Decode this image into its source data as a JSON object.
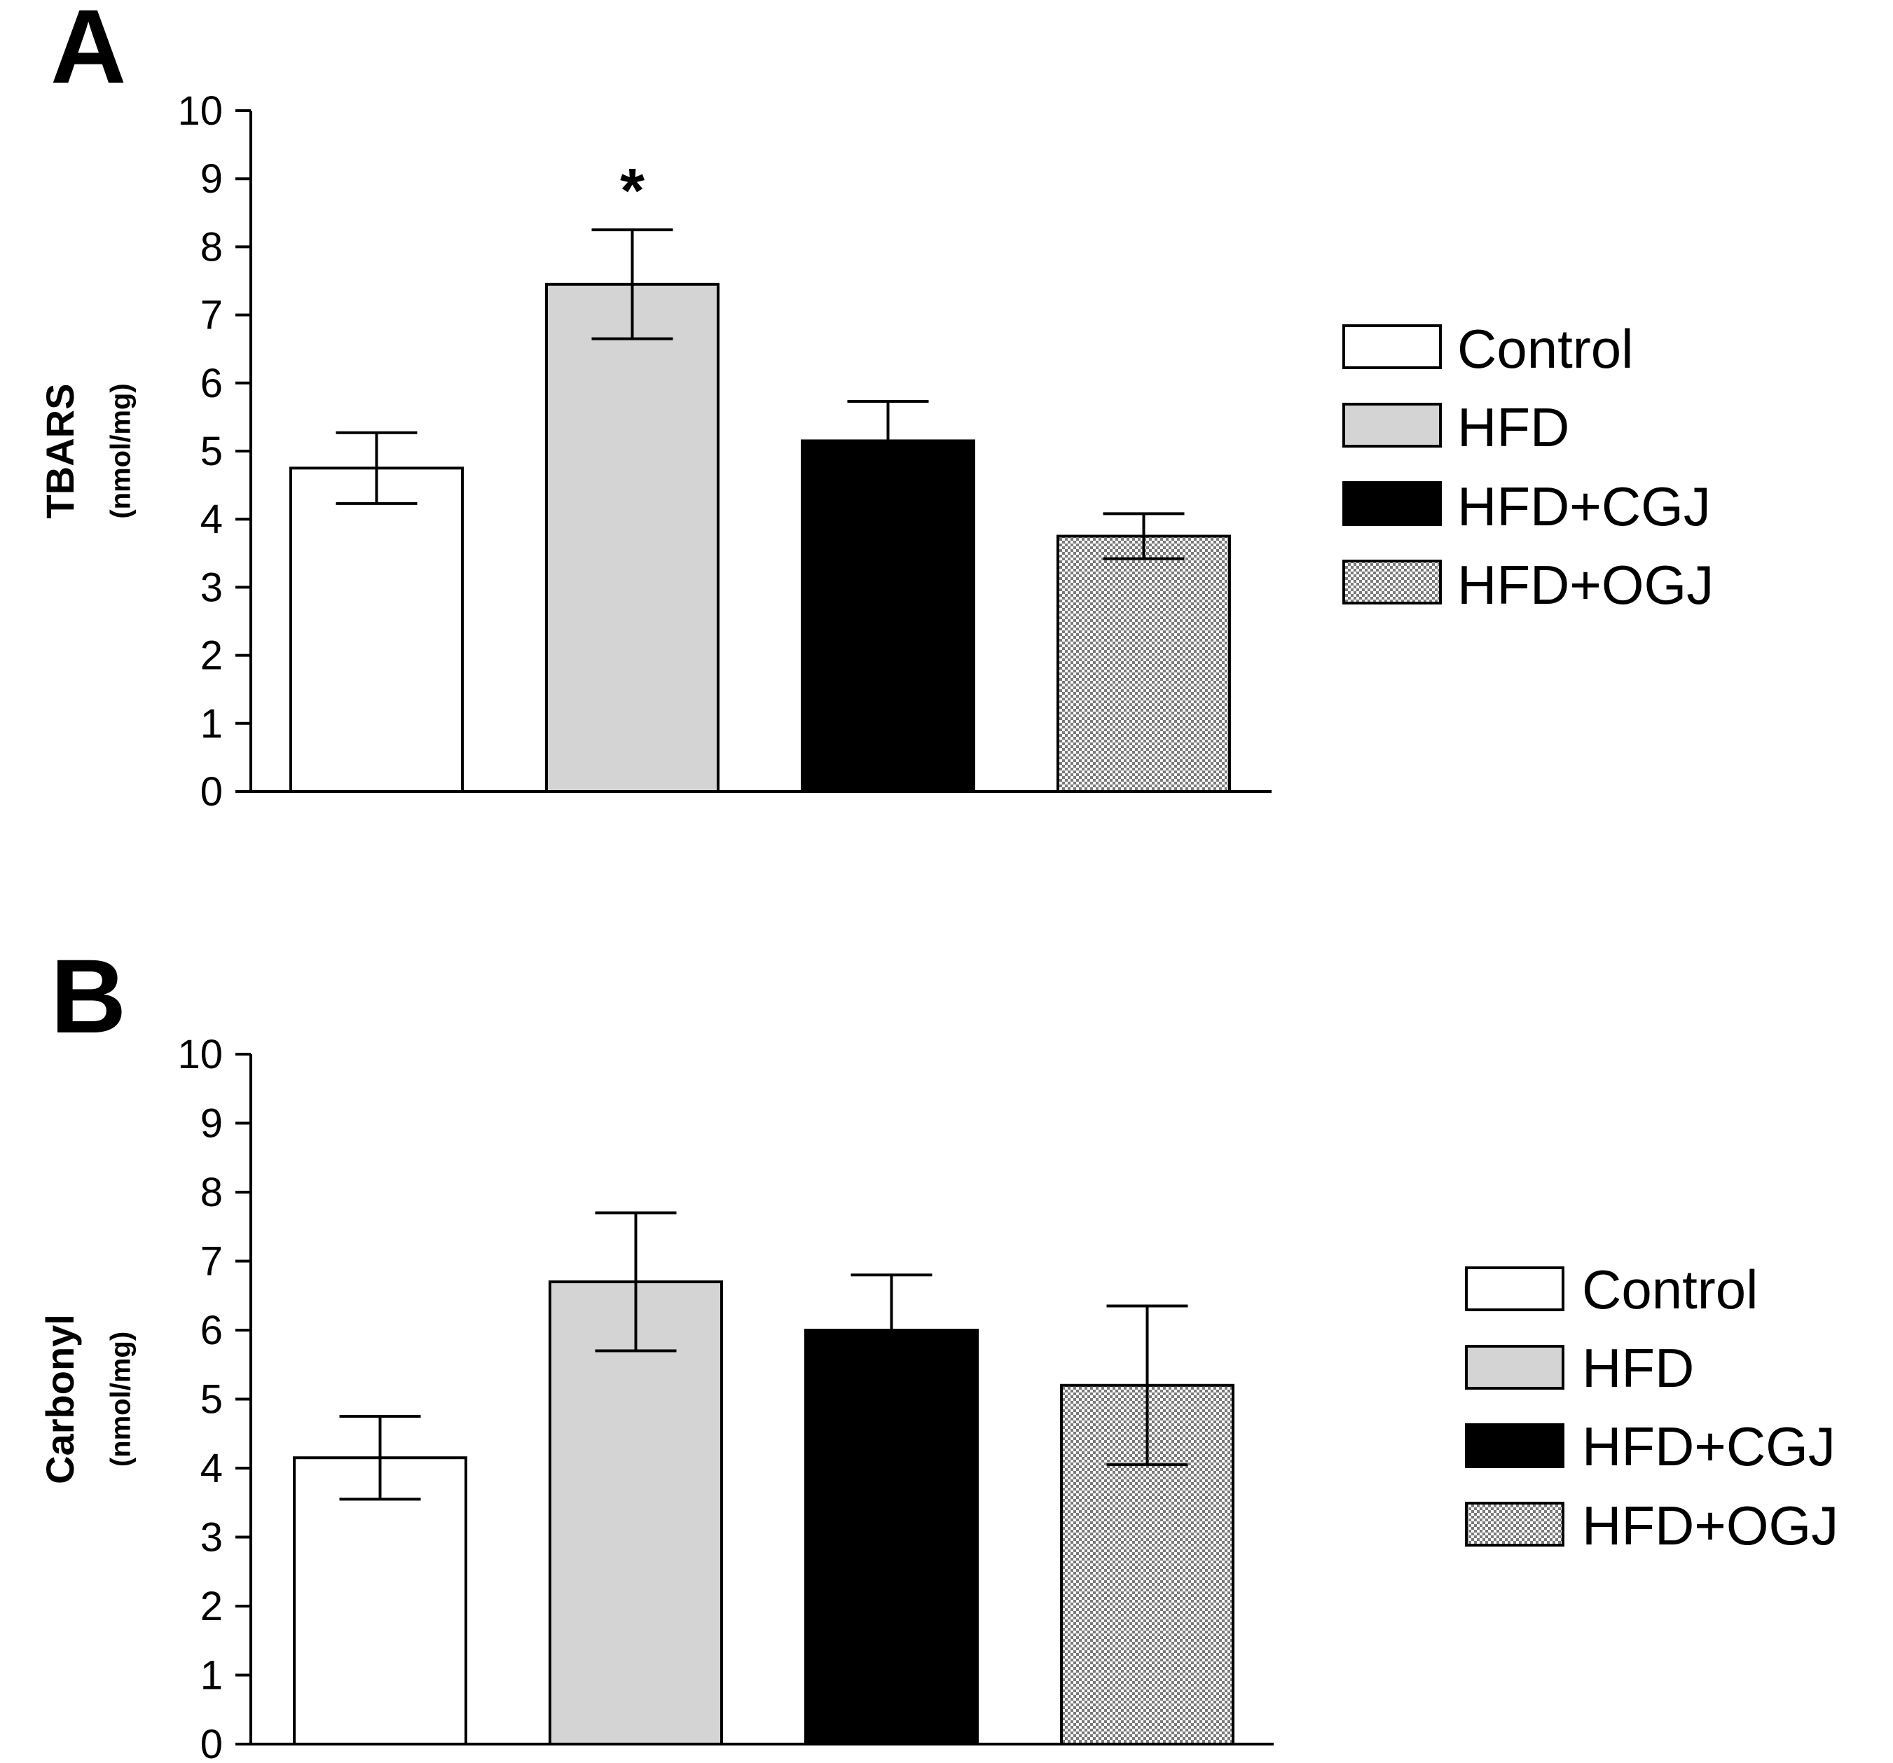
{
  "chart_data": [
    {
      "panel": "A",
      "type": "bar",
      "title": "",
      "xlabel": "",
      "ylabel": "TBARS",
      "ylabel_unit": "(nmol/mg)",
      "ylim": [
        0,
        10
      ],
      "yticks": [
        "0",
        "1",
        "2",
        "3",
        "4",
        "5",
        "6",
        "7",
        "8",
        "9",
        "10"
      ],
      "categories": [
        "Control",
        "HFD",
        "HFD+CGJ",
        "HFD+OGJ"
      ],
      "values": [
        4.75,
        7.45,
        5.15,
        3.75
      ],
      "errors": [
        0.52,
        0.8,
        0.58,
        0.33
      ],
      "significance": [
        "",
        "*",
        "",
        ""
      ],
      "legend": [
        "Control",
        "HFD",
        "HFD+CGJ",
        "HFD+OGJ"
      ],
      "legend_position": "right"
    },
    {
      "panel": "B",
      "type": "bar",
      "title": "",
      "xlabel": "",
      "ylabel": "Carbonyl",
      "ylabel_unit": "(nmol/mg)",
      "ylim": [
        0,
        10
      ],
      "yticks": [
        "0",
        "1",
        "2",
        "3",
        "4",
        "5",
        "6",
        "7",
        "8",
        "9",
        "10"
      ],
      "categories": [
        "Control",
        "HFD",
        "HFD+CGJ",
        "HFD+OGJ"
      ],
      "values": [
        4.15,
        6.7,
        6.0,
        5.2
      ],
      "errors": [
        0.6,
        1.0,
        0.8,
        1.15
      ],
      "significance": [
        "",
        "",
        "",
        ""
      ],
      "legend": [
        "Control",
        "HFD",
        "HFD+CGJ",
        "HFD+OGJ"
      ],
      "legend_position": "right"
    }
  ],
  "colors": {
    "Control": "#ffffff",
    "HFD": "#d4d4d4",
    "HFD+CGJ": "#000000",
    "HFD+OGJ": "pattern"
  }
}
